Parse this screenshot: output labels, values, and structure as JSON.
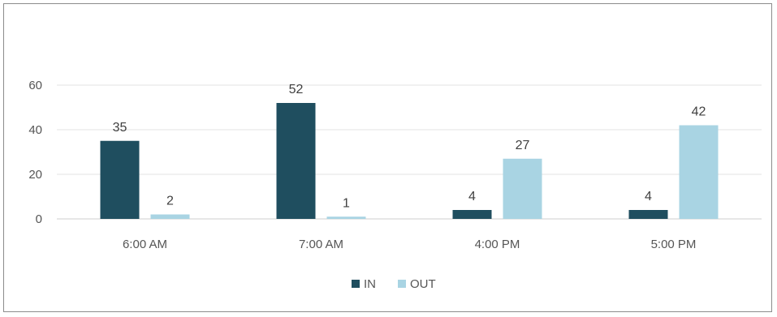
{
  "chart_data": {
    "type": "bar",
    "categories": [
      "6:00 AM",
      "7:00 AM",
      "4:00 PM",
      "5:00 PM"
    ],
    "series": [
      {
        "name": "IN",
        "values": [
          35,
          52,
          4,
          4
        ],
        "color": "#1f4e5f"
      },
      {
        "name": "OUT",
        "values": [
          2,
          1,
          27,
          42
        ],
        "color": "#a9d4e3"
      }
    ],
    "ylim": [
      0,
      60
    ],
    "yticks": [
      0,
      20,
      40,
      60
    ],
    "grid": true,
    "legend_position": "bottom",
    "data_labels": true
  }
}
